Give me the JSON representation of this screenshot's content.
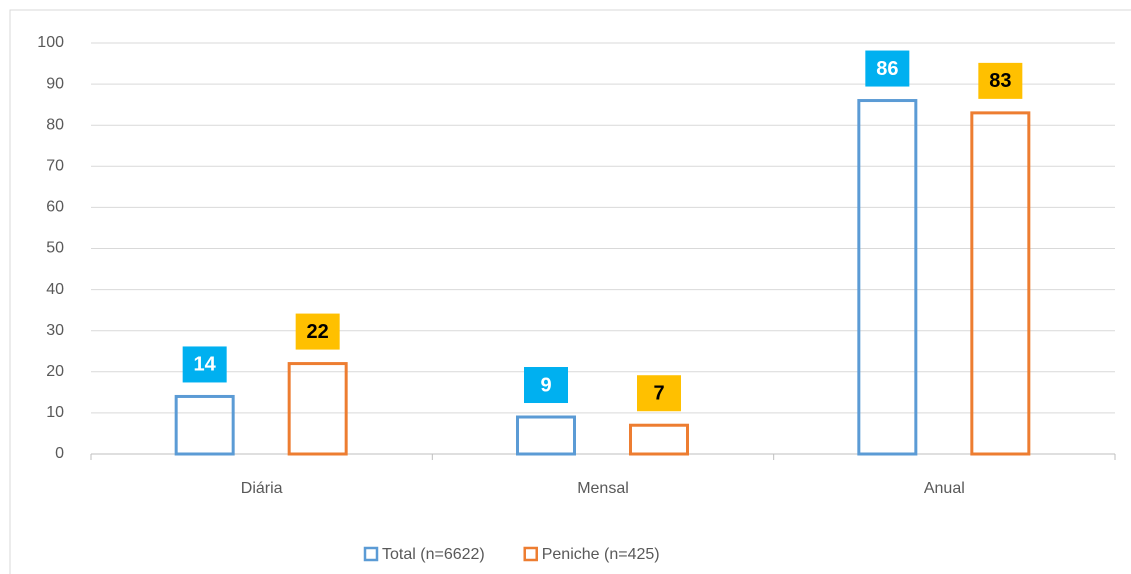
{
  "chart_data": {
    "type": "bar",
    "categories": [
      "Diária",
      "Mensal",
      "Anual"
    ],
    "series": [
      {
        "name": "Total (n=6622)",
        "color": "#5b9bd5",
        "label_color": "#00b0f0",
        "values": [
          14,
          9,
          86
        ]
      },
      {
        "name": "Peniche (n=425)",
        "color": "#ed7d31",
        "label_color": "#ffc000",
        "values": [
          22,
          7,
          83
        ]
      }
    ],
    "ylim": [
      0,
      100
    ],
    "yticks": [
      0,
      10,
      20,
      30,
      40,
      50,
      60,
      70,
      80,
      90,
      100
    ],
    "grid": true,
    "legend": "bottom"
  }
}
